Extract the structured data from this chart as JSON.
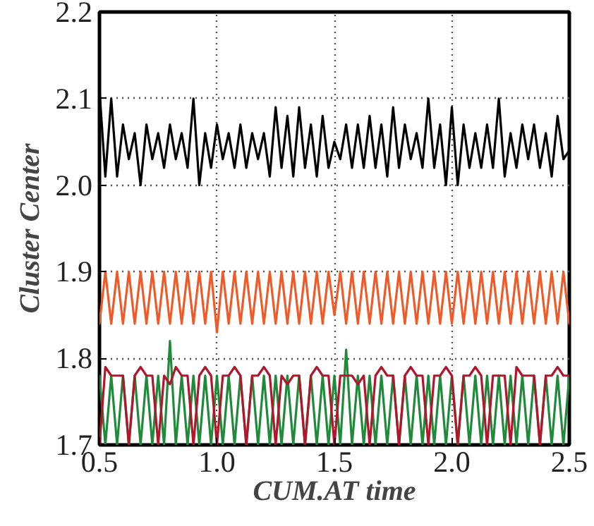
{
  "chart_data": {
    "type": "line",
    "xlabel": "CUM.AT time",
    "ylabel": "Cluster Center",
    "x": [
      0.5,
      0.525,
      0.55,
      0.575,
      0.6,
      0.625,
      0.65,
      0.675,
      0.7,
      0.725,
      0.75,
      0.775,
      0.8,
      0.825,
      0.85,
      0.875,
      0.9,
      0.925,
      0.95,
      0.975,
      1.0,
      1.025,
      1.05,
      1.075,
      1.1,
      1.125,
      1.15,
      1.175,
      1.2,
      1.225,
      1.25,
      1.275,
      1.3,
      1.325,
      1.35,
      1.375,
      1.4,
      1.425,
      1.45,
      1.475,
      1.5,
      1.525,
      1.55,
      1.575,
      1.6,
      1.625,
      1.65,
      1.675,
      1.7,
      1.725,
      1.75,
      1.775,
      1.8,
      1.825,
      1.85,
      1.875,
      1.9,
      1.925,
      1.95,
      1.975,
      2.0,
      2.025,
      2.05,
      2.075,
      2.1,
      2.125,
      2.15,
      2.175,
      2.2,
      2.225,
      2.25,
      2.275,
      2.3,
      2.325,
      2.35,
      2.375,
      2.4,
      2.425,
      2.45,
      2.475,
      2.5
    ],
    "series": [
      {
        "color": "#f05a28",
        "values": [
          1.84,
          1.9,
          1.84,
          1.9,
          1.84,
          1.9,
          1.84,
          1.9,
          1.84,
          1.9,
          1.84,
          1.9,
          1.84,
          1.9,
          1.84,
          1.9,
          1.84,
          1.9,
          1.84,
          1.9,
          1.83,
          1.9,
          1.84,
          1.9,
          1.84,
          1.9,
          1.84,
          1.9,
          1.84,
          1.9,
          1.84,
          1.9,
          1.84,
          1.9,
          1.84,
          1.9,
          1.84,
          1.9,
          1.84,
          1.9,
          1.85,
          1.9,
          1.84,
          1.9,
          1.84,
          1.9,
          1.84,
          1.9,
          1.84,
          1.9,
          1.84,
          1.9,
          1.84,
          1.9,
          1.84,
          1.9,
          1.84,
          1.9,
          1.84,
          1.9,
          1.84,
          1.9,
          1.84,
          1.9,
          1.84,
          1.9,
          1.84,
          1.9,
          1.84,
          1.9,
          1.84,
          1.9,
          1.84,
          1.9,
          1.84,
          1.9,
          1.84,
          1.9,
          1.84,
          1.9,
          1.84
        ]
      },
      {
        "color": "#1f8a3a",
        "values": [
          1.78,
          1.7,
          1.78,
          1.7,
          1.78,
          1.7,
          1.78,
          1.7,
          1.78,
          1.7,
          1.78,
          1.7,
          1.82,
          1.7,
          1.78,
          1.7,
          1.78,
          1.7,
          1.78,
          1.7,
          1.78,
          1.7,
          1.78,
          1.7,
          1.78,
          1.7,
          1.78,
          1.7,
          1.78,
          1.7,
          1.78,
          1.7,
          1.78,
          1.7,
          1.78,
          1.7,
          1.78,
          1.7,
          1.78,
          1.7,
          1.78,
          1.7,
          1.81,
          1.7,
          1.78,
          1.7,
          1.78,
          1.7,
          1.78,
          1.7,
          1.78,
          1.7,
          1.78,
          1.7,
          1.78,
          1.7,
          1.78,
          1.7,
          1.78,
          1.7,
          1.78,
          1.7,
          1.78,
          1.7,
          1.78,
          1.7,
          1.78,
          1.7,
          1.78,
          1.7,
          1.78,
          1.7,
          1.78,
          1.7,
          1.78,
          1.7,
          1.78,
          1.7,
          1.78,
          1.7,
          1.78
        ]
      },
      {
        "color": "#b3152b",
        "values": [
          1.7,
          1.79,
          1.78,
          1.78,
          1.78,
          1.7,
          1.78,
          1.79,
          1.78,
          1.78,
          1.7,
          1.78,
          1.77,
          1.79,
          1.78,
          1.78,
          1.7,
          1.78,
          1.79,
          1.78,
          1.7,
          1.78,
          1.78,
          1.79,
          1.78,
          1.7,
          1.78,
          1.78,
          1.79,
          1.78,
          1.7,
          1.78,
          1.77,
          1.78,
          1.78,
          1.7,
          1.78,
          1.79,
          1.78,
          1.78,
          1.7,
          1.78,
          1.78,
          1.78,
          1.77,
          1.78,
          1.7,
          1.78,
          1.79,
          1.78,
          1.78,
          1.7,
          1.78,
          1.79,
          1.78,
          1.78,
          1.7,
          1.78,
          1.78,
          1.79,
          1.78,
          1.7,
          1.78,
          1.78,
          1.79,
          1.78,
          1.7,
          1.78,
          1.78,
          1.78,
          1.7,
          1.79,
          1.78,
          1.78,
          1.78,
          1.7,
          1.78,
          1.78,
          1.79,
          1.78,
          1.78
        ]
      },
      {
        "color": "#000000",
        "values": [
          2.11,
          2.01,
          2.1,
          2.01,
          2.07,
          2.03,
          2.06,
          2.0,
          2.07,
          2.03,
          2.06,
          2.02,
          2.07,
          2.03,
          2.06,
          2.02,
          2.1,
          2.0,
          2.06,
          2.02,
          2.07,
          2.03,
          2.06,
          2.02,
          2.07,
          2.02,
          2.06,
          2.03,
          2.06,
          2.01,
          2.09,
          2.02,
          2.08,
          2.01,
          2.09,
          2.02,
          2.07,
          2.01,
          2.08,
          2.02,
          2.05,
          2.03,
          2.07,
          2.02,
          2.07,
          2.02,
          2.08,
          2.02,
          2.07,
          2.01,
          2.09,
          2.02,
          2.07,
          2.03,
          2.06,
          2.02,
          2.1,
          2.02,
          2.07,
          2.0,
          2.09,
          2.0,
          2.07,
          2.02,
          2.06,
          2.02,
          2.07,
          2.02,
          2.1,
          2.01,
          2.06,
          2.02,
          2.07,
          2.03,
          2.07,
          2.02,
          2.06,
          2.01,
          2.08,
          2.03,
          2.04
        ]
      }
    ],
    "xlim": [
      0.5,
      2.5
    ],
    "ylim": [
      1.7,
      2.2
    ],
    "xticks": [
      {
        "value": 0.5,
        "label": "0.5"
      },
      {
        "value": 1.0,
        "label": "1.0"
      },
      {
        "value": 1.5,
        "label": "1.5"
      },
      {
        "value": 2.0,
        "label": "2.0"
      },
      {
        "value": 2.5,
        "label": "2.5"
      }
    ],
    "yticks": [
      {
        "value": 1.7,
        "label": "1.7"
      },
      {
        "value": 1.8,
        "label": "1.8"
      },
      {
        "value": 1.9,
        "label": "1.9"
      },
      {
        "value": 2.0,
        "label": "2.0"
      },
      {
        "value": 2.1,
        "label": "2.1"
      },
      {
        "value": 2.2,
        "label": "2.2"
      }
    ],
    "grid": true,
    "marker": "none",
    "line_style": "solid"
  }
}
